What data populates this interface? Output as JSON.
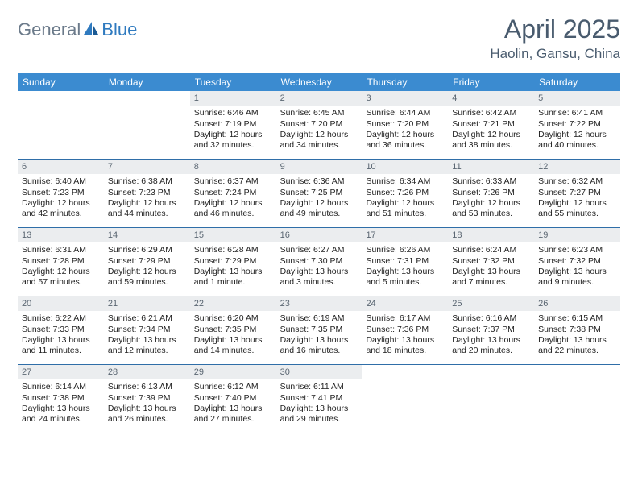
{
  "logo": {
    "general": "General",
    "blue": "Blue"
  },
  "title": {
    "month": "April 2025",
    "location": "Haolin, Gansu, China"
  },
  "colors": {
    "header_bg": "#3b8bd0",
    "header_text": "#ffffff",
    "daynum_bg": "#ebedef",
    "daynum_text": "#5a6672",
    "row_border": "#2f6ea8",
    "title_text": "#495b6e",
    "logo_gray": "#6b7a8a",
    "logo_blue": "#2f7abf"
  },
  "weekdays": [
    "Sunday",
    "Monday",
    "Tuesday",
    "Wednesday",
    "Thursday",
    "Friday",
    "Saturday"
  ],
  "weeks": [
    [
      null,
      null,
      {
        "n": "1",
        "sr": "6:46 AM",
        "ss": "7:19 PM",
        "dl": "12 hours and 32 minutes."
      },
      {
        "n": "2",
        "sr": "6:45 AM",
        "ss": "7:20 PM",
        "dl": "12 hours and 34 minutes."
      },
      {
        "n": "3",
        "sr": "6:44 AM",
        "ss": "7:20 PM",
        "dl": "12 hours and 36 minutes."
      },
      {
        "n": "4",
        "sr": "6:42 AM",
        "ss": "7:21 PM",
        "dl": "12 hours and 38 minutes."
      },
      {
        "n": "5",
        "sr": "6:41 AM",
        "ss": "7:22 PM",
        "dl": "12 hours and 40 minutes."
      }
    ],
    [
      {
        "n": "6",
        "sr": "6:40 AM",
        "ss": "7:23 PM",
        "dl": "12 hours and 42 minutes."
      },
      {
        "n": "7",
        "sr": "6:38 AM",
        "ss": "7:23 PM",
        "dl": "12 hours and 44 minutes."
      },
      {
        "n": "8",
        "sr": "6:37 AM",
        "ss": "7:24 PM",
        "dl": "12 hours and 46 minutes."
      },
      {
        "n": "9",
        "sr": "6:36 AM",
        "ss": "7:25 PM",
        "dl": "12 hours and 49 minutes."
      },
      {
        "n": "10",
        "sr": "6:34 AM",
        "ss": "7:26 PM",
        "dl": "12 hours and 51 minutes."
      },
      {
        "n": "11",
        "sr": "6:33 AM",
        "ss": "7:26 PM",
        "dl": "12 hours and 53 minutes."
      },
      {
        "n": "12",
        "sr": "6:32 AM",
        "ss": "7:27 PM",
        "dl": "12 hours and 55 minutes."
      }
    ],
    [
      {
        "n": "13",
        "sr": "6:31 AM",
        "ss": "7:28 PM",
        "dl": "12 hours and 57 minutes."
      },
      {
        "n": "14",
        "sr": "6:29 AM",
        "ss": "7:29 PM",
        "dl": "12 hours and 59 minutes."
      },
      {
        "n": "15",
        "sr": "6:28 AM",
        "ss": "7:29 PM",
        "dl": "13 hours and 1 minute."
      },
      {
        "n": "16",
        "sr": "6:27 AM",
        "ss": "7:30 PM",
        "dl": "13 hours and 3 minutes."
      },
      {
        "n": "17",
        "sr": "6:26 AM",
        "ss": "7:31 PM",
        "dl": "13 hours and 5 minutes."
      },
      {
        "n": "18",
        "sr": "6:24 AM",
        "ss": "7:32 PM",
        "dl": "13 hours and 7 minutes."
      },
      {
        "n": "19",
        "sr": "6:23 AM",
        "ss": "7:32 PM",
        "dl": "13 hours and 9 minutes."
      }
    ],
    [
      {
        "n": "20",
        "sr": "6:22 AM",
        "ss": "7:33 PM",
        "dl": "13 hours and 11 minutes."
      },
      {
        "n": "21",
        "sr": "6:21 AM",
        "ss": "7:34 PM",
        "dl": "13 hours and 12 minutes."
      },
      {
        "n": "22",
        "sr": "6:20 AM",
        "ss": "7:35 PM",
        "dl": "13 hours and 14 minutes."
      },
      {
        "n": "23",
        "sr": "6:19 AM",
        "ss": "7:35 PM",
        "dl": "13 hours and 16 minutes."
      },
      {
        "n": "24",
        "sr": "6:17 AM",
        "ss": "7:36 PM",
        "dl": "13 hours and 18 minutes."
      },
      {
        "n": "25",
        "sr": "6:16 AM",
        "ss": "7:37 PM",
        "dl": "13 hours and 20 minutes."
      },
      {
        "n": "26",
        "sr": "6:15 AM",
        "ss": "7:38 PM",
        "dl": "13 hours and 22 minutes."
      }
    ],
    [
      {
        "n": "27",
        "sr": "6:14 AM",
        "ss": "7:38 PM",
        "dl": "13 hours and 24 minutes."
      },
      {
        "n": "28",
        "sr": "6:13 AM",
        "ss": "7:39 PM",
        "dl": "13 hours and 26 minutes."
      },
      {
        "n": "29",
        "sr": "6:12 AM",
        "ss": "7:40 PM",
        "dl": "13 hours and 27 minutes."
      },
      {
        "n": "30",
        "sr": "6:11 AM",
        "ss": "7:41 PM",
        "dl": "13 hours and 29 minutes."
      },
      null,
      null,
      null
    ]
  ],
  "labels": {
    "sunrise": "Sunrise:",
    "sunset": "Sunset:",
    "daylight": "Daylight:"
  }
}
